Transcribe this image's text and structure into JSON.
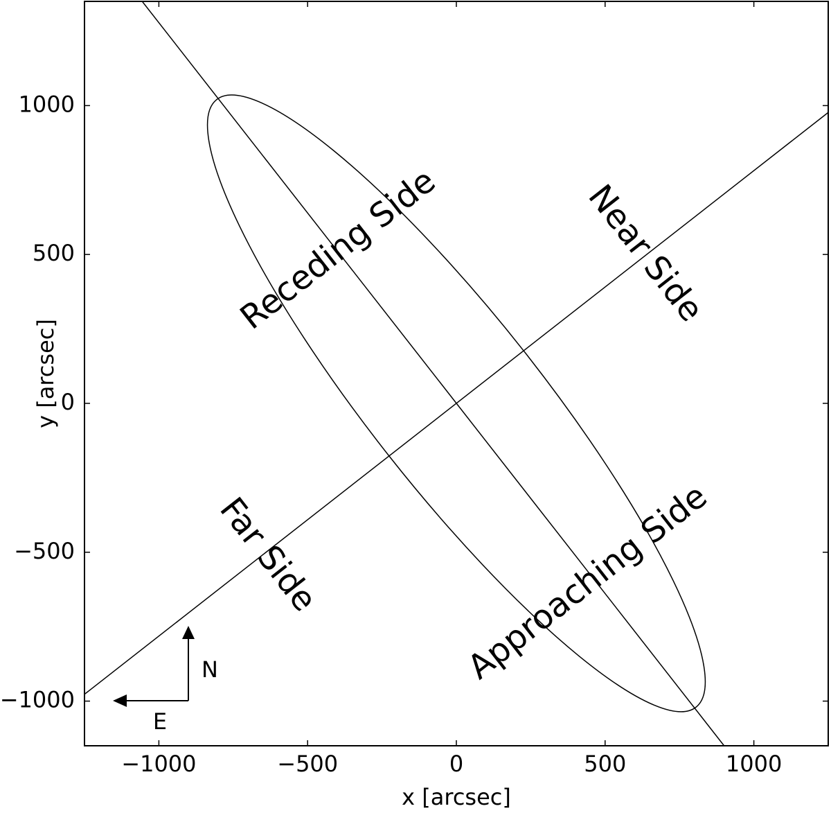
{
  "chart_data": {
    "type": "geometry",
    "xlabel": "x [arcsec]",
    "ylabel": "y [arcsec]",
    "xlim": [
      -1250,
      1250
    ],
    "ylim": [
      -1150,
      1350
    ],
    "xticks": [
      {
        "value": -1000,
        "label": "−1000"
      },
      {
        "value": -500,
        "label": "−500"
      },
      0,
      500,
      1000
    ],
    "yticks": [
      {
        "value": -1000,
        "label": "−1000"
      },
      {
        "value": -500,
        "label": "−500"
      },
      0,
      500,
      1000
    ],
    "color": "#000000",
    "lines": [
      {
        "x": [
          -1056,
          900
        ],
        "y": [
          1350,
          -1150
        ]
      },
      {
        "x": [
          -1250,
          1250
        ],
        "y": [
          -977,
          977
        ]
      }
    ],
    "ellipse": {
      "center": [
        0,
        0
      ],
      "semi_major": 1300,
      "semi_minor": 287,
      "angle": 128.3
    },
    "annotations": [
      {
        "text": "Receding Side",
        "x": -394,
        "y": 512,
        "rotation": 38
      },
      {
        "text": "Near Side",
        "x": 631,
        "y": 500,
        "rotation": -52
      },
      {
        "text": "Far Side",
        "x": -638,
        "y": -512,
        "rotation": -52
      },
      {
        "text": "Approaching Side",
        "x": 445,
        "y": -605,
        "rotation": 38
      }
    ],
    "compass": {
      "north": "N",
      "east": "E"
    }
  }
}
